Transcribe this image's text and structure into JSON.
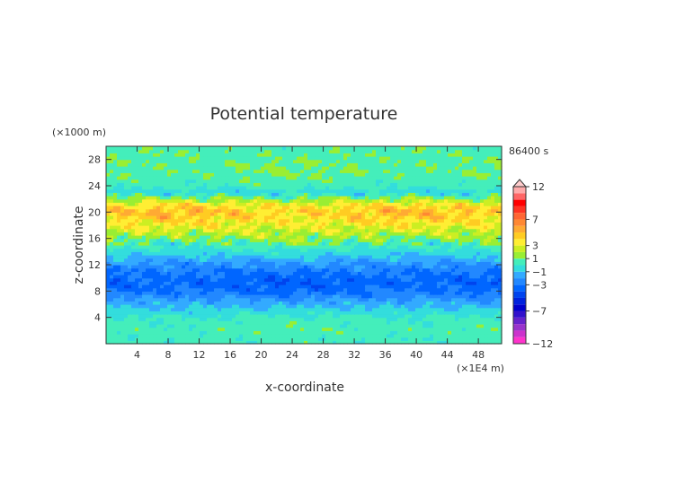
{
  "chart_data": {
    "type": "heatmap",
    "title": "Potential temperature",
    "xlabel": "x-coordinate",
    "ylabel": "z-coordinate",
    "x_unit": "(×1E4 m)",
    "y_unit": "(×1000 m)",
    "time_label": "86400 s",
    "xlim": [
      0,
      51
    ],
    "ylim": [
      0,
      30
    ],
    "x_ticks": [
      4,
      8,
      12,
      16,
      20,
      24,
      28,
      32,
      36,
      40,
      44,
      48
    ],
    "y_ticks": [
      4,
      8,
      12,
      16,
      20,
      24,
      28
    ],
    "colorbar": {
      "levels": [
        -12,
        -11,
        -10,
        -9,
        -8,
        -7,
        -6,
        -5,
        -4,
        -3,
        -2,
        -1,
        0,
        1,
        2,
        3,
        4,
        5,
        6,
        7,
        8,
        9,
        10,
        11,
        12
      ],
      "tick_labels": [
        "12",
        "7",
        "3",
        "1",
        "−1",
        "−3",
        "−7",
        "−12"
      ],
      "tick_values": [
        12,
        7,
        3,
        1,
        -1,
        -3,
        -7,
        -12
      ],
      "colors": [
        "#ff33cc",
        "#cc33cc",
        "#9933cc",
        "#6622cc",
        "#3311cc",
        "#0000cc",
        "#0022dd",
        "#0044ee",
        "#0066ff",
        "#2288ff",
        "#33aaff",
        "#33dddd",
        "#44eebb",
        "#99ee33",
        "#ccee22",
        "#ffee33",
        "#ffcc22",
        "#ffaa33",
        "#ff8833",
        "#ff6633",
        "#ff3322",
        "#ff0000",
        "#ff6666",
        "#ffaaaa"
      ]
    },
    "profile": [
      {
        "z": 0.5,
        "value": 0.3
      },
      {
        "z": 2,
        "value": 0.6
      },
      {
        "z": 4,
        "value": 0.2
      },
      {
        "z": 6,
        "value": -1.3
      },
      {
        "z": 7,
        "value": -2.2
      },
      {
        "z": 8,
        "value": -3.2
      },
      {
        "z": 9.5,
        "value": -3.6
      },
      {
        "z": 11,
        "value": -3.0
      },
      {
        "z": 12.5,
        "value": -1.8
      },
      {
        "z": 14,
        "value": -0.4
      },
      {
        "z": 15.5,
        "value": 0.8
      },
      {
        "z": 17,
        "value": 2.3
      },
      {
        "z": 18.5,
        "value": 3.6
      },
      {
        "z": 20,
        "value": 4.6
      },
      {
        "z": 21,
        "value": 3.8
      },
      {
        "z": 22,
        "value": 1.6
      },
      {
        "z": 23,
        "value": -0.6
      },
      {
        "z": 24,
        "value": 0.4
      },
      {
        "z": 26,
        "value": 0.9
      },
      {
        "z": 28,
        "value": 0.8
      },
      {
        "z": 30,
        "value": 0.6
      }
    ]
  }
}
